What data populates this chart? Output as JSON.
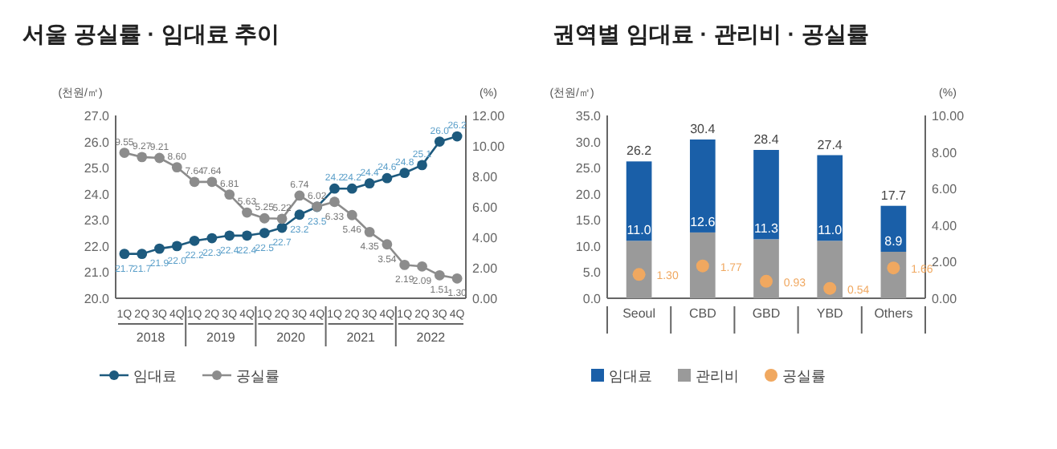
{
  "chart_data": [
    {
      "type": "line",
      "title": "서울 공실률 · 임대료 추이",
      "ylabel": "(천원/㎡)",
      "y2label": "(%)",
      "categories": [
        "1Q",
        "2Q",
        "3Q",
        "4Q",
        "1Q",
        "2Q",
        "3Q",
        "4Q",
        "1Q",
        "2Q",
        "3Q",
        "4Q",
        "1Q",
        "2Q",
        "3Q",
        "4Q",
        "1Q",
        "2Q",
        "3Q",
        "4Q"
      ],
      "annotations": [
        "2018",
        "2019",
        "2020",
        "2021",
        "2022"
      ],
      "series": [
        {
          "name": "임대료",
          "color": "#1d5a7e",
          "values": [
            21.7,
            21.7,
            21.9,
            22.0,
            22.2,
            22.3,
            22.4,
            22.4,
            22.5,
            22.7,
            23.2,
            23.5,
            24.2,
            24.2,
            24.4,
            24.6,
            24.8,
            25.1,
            26.0,
            26.2
          ],
          "value_labels": [
            "21.7",
            "21.7",
            "21.9",
            "22.0",
            "22.2",
            "22.3",
            "22.4",
            "22.4",
            "22.5",
            "22.7",
            "23.2",
            "23.5",
            "24.2",
            "24.2",
            "24.4",
            "24.6",
            "24.8",
            "25.1",
            "26.0",
            "26.2"
          ]
        },
        {
          "name": "공실률",
          "color": "#8c8c8c",
          "axis": "y2",
          "values": [
            9.55,
            9.27,
            9.21,
            8.6,
            7.64,
            7.64,
            6.81,
            5.63,
            5.25,
            5.22,
            6.74,
            6.02,
            6.33,
            5.46,
            4.35,
            3.54,
            2.19,
            2.09,
            1.51,
            1.3
          ],
          "value_labels": [
            "9.55",
            "9.27",
            "9.21",
            "8.60",
            "7.64",
            "7.64",
            "6.81",
            "5.63",
            "5.25",
            "5.22",
            "6.74",
            "6.02",
            "6.33",
            "5.46",
            "4.35",
            "3.54",
            "2.19",
            "2.09",
            "1.51",
            "1.30"
          ]
        }
      ],
      "ylim": [
        20,
        27
      ],
      "yticks": [
        {
          "value": 20,
          "label": "20.0"
        },
        {
          "value": 21,
          "label": "21.0"
        },
        {
          "value": 22,
          "label": "22.0"
        },
        {
          "value": 23,
          "label": "23.0"
        },
        {
          "value": 24,
          "label": "24.0"
        },
        {
          "value": 25,
          "label": "25.0"
        },
        {
          "value": 26,
          "label": "26.0"
        },
        {
          "value": 27,
          "label": "27.0"
        }
      ],
      "y2lim": [
        0,
        12
      ],
      "y2ticks": [
        {
          "value": 0,
          "label": "0.00"
        },
        {
          "value": 2,
          "label": "2.00"
        },
        {
          "value": 4,
          "label": "4.00"
        },
        {
          "value": 6,
          "label": "6.00"
        },
        {
          "value": 8,
          "label": "8.00"
        },
        {
          "value": 10,
          "label": "10.00"
        },
        {
          "value": 12,
          "label": "12.00"
        }
      ],
      "marker": "circle",
      "legend": "bottom"
    },
    {
      "type": "bar",
      "title": "권역별 임대료 · 관리비 · 공실률",
      "ylabel": "(천원/㎡)",
      "y2label": "(%)",
      "categories": [
        "Seoul",
        "CBD",
        "GBD",
        "YBD",
        "Others"
      ],
      "stacked": true,
      "series": [
        {
          "name": "관리비",
          "color": "#9a9a9a",
          "values": [
            11.0,
            12.6,
            11.3,
            11.0,
            8.9
          ],
          "value_labels": [
            "11.0",
            "12.6",
            "11.3",
            "11.0",
            "8.9"
          ]
        },
        {
          "name": "임대료",
          "color": "#1a5fa8",
          "values": [
            15.2,
            17.8,
            17.1,
            16.4,
            8.8
          ]
        },
        {
          "name": "공실률",
          "type": "scatter",
          "axis": "y2",
          "color": "#f0a860",
          "values": [
            1.3,
            1.77,
            0.93,
            0.54,
            1.66
          ],
          "value_labels": [
            "1.30",
            "1.77",
            "0.93",
            "0.54",
            "1.66"
          ]
        }
      ],
      "totals": [
        "26.2",
        "30.4",
        "28.4",
        "27.4",
        "17.7"
      ],
      "ylim": [
        0,
        35
      ],
      "yticks": [
        {
          "value": 0,
          "label": "0.0"
        },
        {
          "value": 5,
          "label": "5.0"
        },
        {
          "value": 10,
          "label": "10.0"
        },
        {
          "value": 15,
          "label": "15.0"
        },
        {
          "value": 20,
          "label": "20.0"
        },
        {
          "value": 25,
          "label": "25.0"
        },
        {
          "value": 30,
          "label": "30.0"
        },
        {
          "value": 35,
          "label": "35.0"
        }
      ],
      "y2lim": [
        0,
        10
      ],
      "y2ticks": [
        {
          "value": 0,
          "label": "0.00"
        },
        {
          "value": 2,
          "label": "2.00"
        },
        {
          "value": 4,
          "label": "4.00"
        },
        {
          "value": 6,
          "label": "6.00"
        },
        {
          "value": 8,
          "label": "8.00"
        },
        {
          "value": 10,
          "label": "10.00"
        }
      ],
      "legend": "bottom"
    }
  ]
}
